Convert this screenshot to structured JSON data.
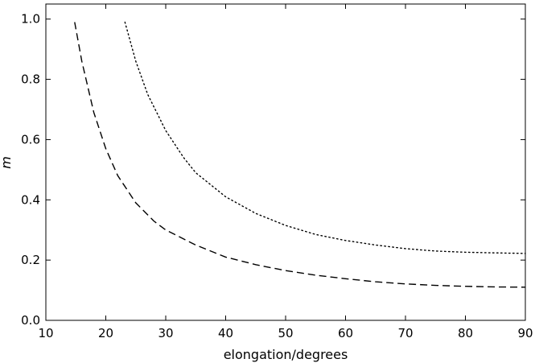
{
  "chart_data": {
    "type": "line",
    "xlabel": "elongation/degrees",
    "ylabel": "m",
    "xlim": [
      10,
      90
    ],
    "ylim": [
      0.0,
      1.05
    ],
    "grid": false,
    "x_ticks": [
      10,
      20,
      30,
      40,
      50,
      60,
      70,
      80,
      90
    ],
    "x_tick_labels": [
      "10",
      "20",
      "30",
      "40",
      "50",
      "60",
      "70",
      "80",
      "90"
    ],
    "y_ticks": [
      0.0,
      0.2,
      0.4,
      0.6,
      0.8,
      1.0
    ],
    "y_tick_labels": [
      "0.0",
      "0.2",
      "0.4",
      "0.6",
      "0.8",
      "1.0"
    ],
    "series": [
      {
        "line_style": "dashed",
        "color": "#000000",
        "x": [
          14.8,
          16,
          18,
          20,
          22,
          25,
          28,
          30,
          35,
          40,
          45,
          50,
          55,
          60,
          65,
          70,
          75,
          80,
          85,
          90
        ],
        "y": [
          0.99,
          0.86,
          0.69,
          0.57,
          0.48,
          0.39,
          0.33,
          0.3,
          0.25,
          0.21,
          0.185,
          0.165,
          0.15,
          0.138,
          0.128,
          0.121,
          0.116,
          0.113,
          0.111,
          0.11
        ]
      },
      {
        "line_style": "dotted",
        "color": "#000000",
        "x": [
          23.2,
          25,
          27,
          30,
          33,
          35,
          40,
          45,
          50,
          55,
          60,
          65,
          70,
          75,
          80,
          85,
          90
        ],
        "y": [
          0.99,
          0.86,
          0.75,
          0.63,
          0.54,
          0.49,
          0.41,
          0.355,
          0.315,
          0.285,
          0.265,
          0.25,
          0.238,
          0.23,
          0.226,
          0.224,
          0.222
        ]
      }
    ]
  }
}
